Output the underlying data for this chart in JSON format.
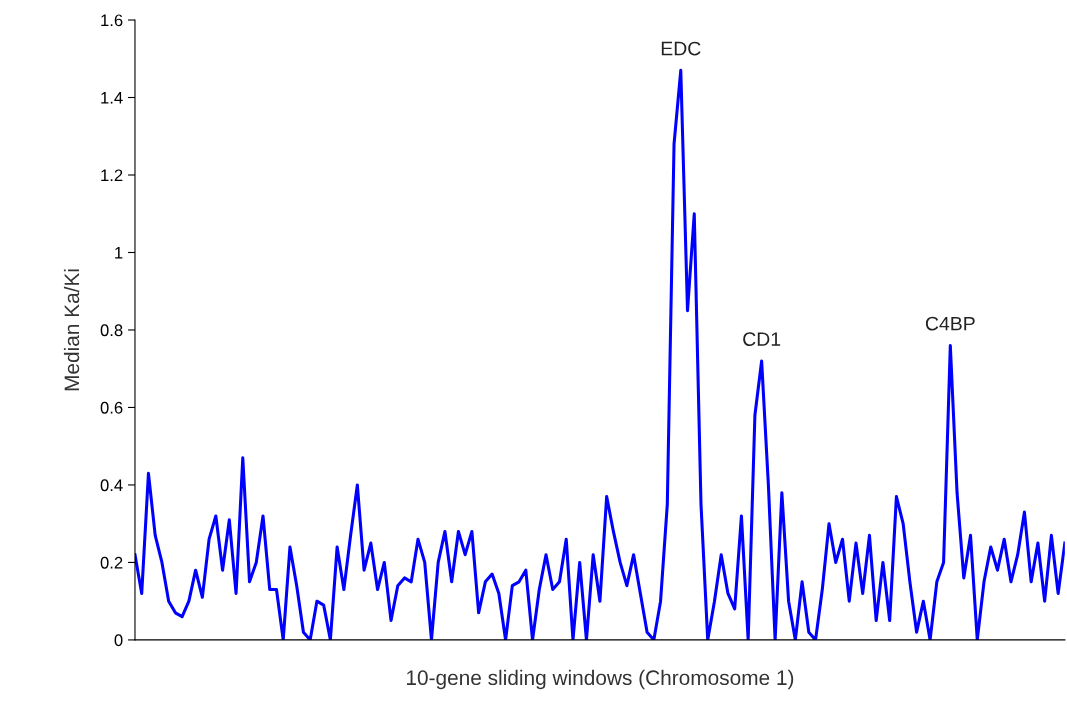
{
  "chart_data": {
    "type": "line",
    "xlabel": "10-gene sliding windows (Chromosome 1)",
    "ylabel": "Median Ka/Ki",
    "categories": [
      null,
      null,
      null,
      null,
      null,
      null,
      null,
      null,
      null,
      null,
      null,
      null,
      null,
      null,
      null,
      null,
      null,
      null,
      null,
      null,
      null,
      null,
      null,
      null,
      null,
      null,
      null,
      null,
      null,
      null,
      null,
      null,
      null,
      null,
      null,
      null,
      null,
      null,
      null,
      null,
      null,
      null,
      null,
      null,
      null,
      null,
      null,
      null,
      null,
      null,
      null,
      null,
      null,
      null,
      null,
      null,
      null,
      null,
      null,
      null,
      null,
      null,
      null,
      null,
      null,
      null,
      null,
      null,
      null,
      null,
      null,
      null,
      null,
      null,
      null,
      null,
      null,
      null,
      null,
      null,
      null,
      null,
      null,
      null,
      null,
      null,
      null,
      null,
      null,
      null,
      null,
      null,
      null,
      null,
      null,
      null,
      null,
      null,
      null,
      null,
      null,
      null,
      null,
      null,
      null,
      null,
      null,
      null,
      null,
      null,
      null,
      null,
      null,
      null,
      null,
      null,
      null,
      null,
      null,
      null,
      null,
      null,
      null,
      null,
      null,
      null,
      null,
      null,
      null,
      null,
      null,
      null,
      null,
      null,
      null,
      null,
      null,
      null,
      null
    ],
    "series": [
      {
        "color": "#0000ff",
        "values": [
          0.22,
          0.12,
          0.43,
          0.27,
          0.2,
          0.1,
          0.07,
          0.06,
          0.1,
          0.18,
          0.11,
          0.26,
          0.32,
          0.18,
          0.31,
          0.12,
          0.47,
          0.15,
          0.2,
          0.32,
          0.13,
          0.13,
          0,
          0.24,
          0.14,
          0.02,
          0,
          0.1,
          0.09,
          0,
          0.24,
          0.13,
          0.27,
          0.4,
          0.18,
          0.25,
          0.13,
          0.2,
          0.05,
          0.14,
          0.16,
          0.15,
          0.26,
          0.2,
          0,
          0.2,
          0.28,
          0.15,
          0.28,
          0.22,
          0.28,
          0.07,
          0.15,
          0.17,
          0.12,
          0,
          0.14,
          0.15,
          0.18,
          0,
          0.13,
          0.22,
          0.13,
          0.15,
          0.26,
          0,
          0.2,
          0,
          0.22,
          0.1,
          0.37,
          0.28,
          0.2,
          0.14,
          0.22,
          0.12,
          0.02,
          0,
          0.1,
          0.35,
          1.28,
          1.47,
          0.85,
          1.1,
          0.35,
          0,
          0.1,
          0.22,
          0.12,
          0.08,
          0.32,
          0,
          0.58,
          0.72,
          0.4,
          0,
          0.38,
          0.1,
          0,
          0.15,
          0.02,
          0,
          0.13,
          0.3,
          0.2,
          0.26,
          0.1,
          0.25,
          0.12,
          0.27,
          0.05,
          0.2,
          0.05,
          0.37,
          0.3,
          0.15,
          0.02,
          0.1,
          0,
          0.15,
          0.2,
          0.76,
          0.38,
          0.16,
          0.27,
          0,
          0.15,
          0.24,
          0.18,
          0.26,
          0.15,
          0.22,
          0.33,
          0.15,
          0.25,
          0.1,
          0.27,
          0.12,
          0.25
        ]
      }
    ],
    "ylim": [
      0,
      1.6
    ],
    "yticks": [
      0,
      0.2,
      0.4,
      0.6,
      0.8,
      1,
      1.2,
      1.4,
      1.6
    ],
    "annotations": [
      {
        "text": "EDC",
        "y": 1.47
      },
      {
        "text": "CD1",
        "y": 0.72
      },
      {
        "text": "C4BP",
        "y": 0.76
      }
    ],
    "marker": "none",
    "line_style": "solid",
    "grid": false,
    "legend": false
  }
}
